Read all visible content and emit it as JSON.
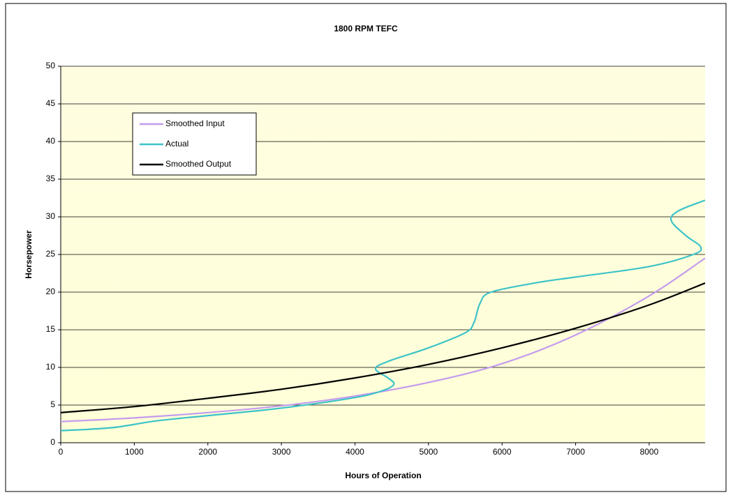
{
  "chart_data": {
    "type": "line",
    "title": "1800 RPM TEFC",
    "xlabel": "Hours of Operation",
    "ylabel": "Horsepower",
    "xlim": [
      0,
      8760
    ],
    "ylim": [
      0,
      50
    ],
    "xticks": [
      0,
      1000,
      2000,
      3000,
      4000,
      5000,
      6000,
      7000,
      8000
    ],
    "yticks": [
      0,
      5,
      10,
      15,
      20,
      25,
      30,
      35,
      40,
      45,
      50
    ],
    "grid": true,
    "legend": "upper left",
    "series": [
      {
        "name": "Smoothed Input",
        "color": "#c49bef",
        "x": [
          0,
          1000,
          2000,
          3000,
          4000,
          5000,
          6000,
          7000,
          8000,
          8760
        ],
        "values": [
          2.8,
          3.3,
          4.0,
          4.9,
          6.2,
          8.0,
          10.5,
          14.3,
          19.5,
          24.5
        ]
      },
      {
        "name": "Actual",
        "color": "#3cc3c8",
        "x": [
          0,
          700,
          1300,
          2000,
          3000,
          4000,
          4400,
          4530,
          4450,
          4280,
          4450,
          5000,
          5500,
          5620,
          5700,
          5850,
          6500,
          7000,
          8000,
          8600,
          8700,
          8500,
          8300,
          8400,
          8760
        ],
        "values": [
          1.6,
          2.0,
          2.9,
          3.6,
          4.6,
          6.0,
          7.0,
          7.8,
          8.6,
          9.8,
          10.8,
          12.6,
          14.6,
          16.0,
          18.5,
          20.0,
          21.3,
          22.0,
          23.4,
          25.0,
          26.0,
          27.5,
          29.5,
          30.8,
          32.2
        ]
      },
      {
        "name": "Smoothed Output",
        "color": "#000000",
        "x": [
          0,
          1000,
          2000,
          3000,
          4000,
          5000,
          6000,
          7000,
          8000,
          8760
        ],
        "values": [
          4.0,
          4.8,
          5.9,
          7.1,
          8.6,
          10.4,
          12.6,
          15.2,
          18.3,
          21.2
        ]
      }
    ]
  }
}
